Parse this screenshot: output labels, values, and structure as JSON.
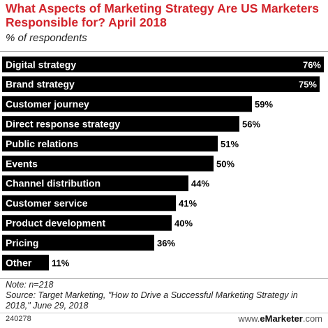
{
  "header": {
    "title": "What Aspects of Marketing Strategy Are US Marketers Responsible for? April 2018",
    "subtitle": "% of respondents"
  },
  "chart_data": {
    "type": "bar",
    "orientation": "horizontal",
    "title": "What Aspects of Marketing Strategy Are US Marketers Responsible for? April 2018",
    "subtitle": "% of respondents",
    "categories": [
      "Digital strategy",
      "Brand strategy",
      "Customer journey",
      "Direct response strategy",
      "Public relations",
      "Events",
      "Channel distribution",
      "Customer service",
      "Product development",
      "Pricing",
      "Other"
    ],
    "values": [
      76,
      75,
      59,
      56,
      51,
      50,
      44,
      41,
      40,
      36,
      11
    ],
    "value_labels": [
      "76%",
      "75%",
      "59%",
      "56%",
      "51%",
      "50%",
      "44%",
      "41%",
      "40%",
      "36%",
      "11%"
    ],
    "xlim": [
      0,
      76
    ],
    "bar_color": "#000000",
    "grid": false,
    "legend": "none"
  },
  "notes": {
    "note": "Note: n=218",
    "source": "Source: Target Marketing, \"How to Drive a Successful Marketing Strategy in 2018,\" June 29, 2018"
  },
  "footer": {
    "chart_id": "240278",
    "brand_prefix": "www.",
    "brand_name": "eMarketer",
    "brand_suffix": ".com"
  }
}
